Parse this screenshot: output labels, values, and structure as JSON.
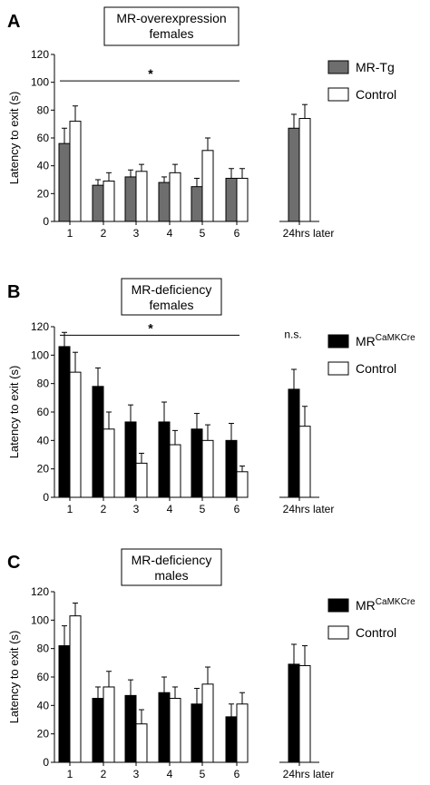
{
  "chart_data": [
    {
      "type": "bar",
      "panel": "A",
      "title_lines": [
        "MR-overexpression",
        "females"
      ],
      "ylabel": "Latency to exit (s)",
      "xlabel": "",
      "ylim": [
        0,
        120
      ],
      "yticks": [
        0,
        20,
        40,
        60,
        80,
        100,
        120
      ],
      "categories": [
        "1",
        "2",
        "3",
        "4",
        "5",
        "6",
        "24hrs later"
      ],
      "series": [
        {
          "name": "MR-Tg",
          "color": "#6e6e6e",
          "values": [
            56,
            26,
            32,
            28,
            25,
            31,
            67
          ],
          "errors": [
            11,
            4,
            5,
            4,
            6,
            7,
            10
          ]
        },
        {
          "name": "Control",
          "color": "#ffffff",
          "values": [
            72,
            29,
            36,
            35,
            51,
            31,
            74
          ],
          "errors": [
            11,
            6,
            5,
            6,
            9,
            7,
            10
          ]
        }
      ],
      "significance": {
        "symbol": "*",
        "from": "1",
        "to": "6",
        "y": 101
      },
      "annotation": ""
    },
    {
      "type": "bar",
      "panel": "B",
      "title_lines": [
        "MR-deficiency",
        "females"
      ],
      "ylabel": "Latency to exit (s)",
      "xlabel": "",
      "ylim": [
        0,
        120
      ],
      "yticks": [
        0,
        20,
        40,
        60,
        80,
        100,
        120
      ],
      "categories": [
        "1",
        "2",
        "3",
        "4",
        "5",
        "6",
        "24hrs later"
      ],
      "series": [
        {
          "name": "MR",
          "name_sup": "CaMKCre",
          "color": "#000000",
          "values": [
            106,
            78,
            53,
            53,
            48,
            40,
            76
          ],
          "errors": [
            10,
            13,
            12,
            14,
            11,
            12,
            14
          ]
        },
        {
          "name": "Control",
          "color": "#ffffff",
          "values": [
            88,
            48,
            24,
            37,
            40,
            18,
            50
          ],
          "errors": [
            14,
            12,
            7,
            10,
            11,
            4,
            14
          ]
        }
      ],
      "significance": {
        "symbol": "*",
        "from": "1",
        "to": "6",
        "y": 114
      },
      "annotation": "n.s."
    },
    {
      "type": "bar",
      "panel": "C",
      "title_lines": [
        "MR-deficiency",
        "males"
      ],
      "ylabel": "Latency to exit (s)",
      "xlabel": "",
      "ylim": [
        0,
        120
      ],
      "yticks": [
        0,
        20,
        40,
        60,
        80,
        100,
        120
      ],
      "categories": [
        "1",
        "2",
        "3",
        "4",
        "5",
        "6",
        "24hrs later"
      ],
      "series": [
        {
          "name": "MR",
          "name_sup": "CaMKCre",
          "color": "#000000",
          "values": [
            82,
            45,
            47,
            49,
            41,
            32,
            69
          ],
          "errors": [
            14,
            8,
            11,
            11,
            11,
            9,
            14
          ]
        },
        {
          "name": "Control",
          "color": "#ffffff",
          "values": [
            103,
            53,
            27,
            45,
            55,
            41,
            68
          ],
          "errors": [
            9,
            11,
            10,
            8,
            12,
            8,
            14
          ]
        }
      ],
      "significance": null,
      "annotation": ""
    }
  ]
}
